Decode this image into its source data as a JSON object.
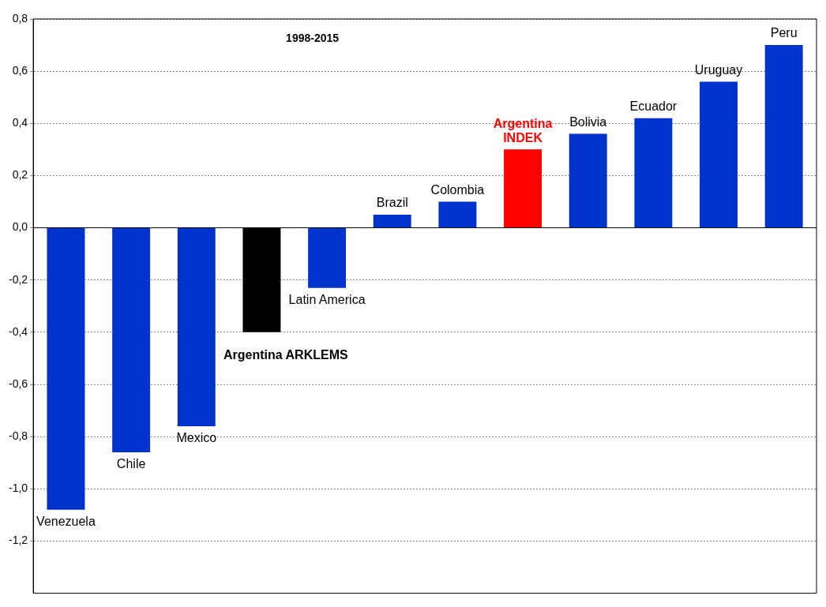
{
  "chart_data": {
    "type": "bar",
    "annotations": [
      "1998-2015"
    ],
    "categories": [
      "Venezuela",
      "Chile",
      "Mexico",
      "Argentina ARKLEMS",
      "Latin America",
      "Brazil",
      "Colombia",
      "Argentina INDEK",
      "Bolivia",
      "Ecuador",
      "Uruguay",
      "Peru"
    ],
    "values": [
      -1.08,
      -0.86,
      -0.76,
      -0.4,
      -0.23,
      0.05,
      0.1,
      0.3,
      0.36,
      0.42,
      0.56,
      0.7
    ],
    "colors": [
      "#0033cc",
      "#0033cc",
      "#0033cc",
      "#000000",
      "#0033cc",
      "#0033cc",
      "#0033cc",
      "#ff0000",
      "#0033cc",
      "#0033cc",
      "#0033cc",
      "#0033cc"
    ],
    "ylim": [
      -1.4,
      0.8
    ],
    "yticks": [
      {
        "value": 0.8,
        "label": "0,8"
      },
      {
        "value": 0.6,
        "label": "0,6"
      },
      {
        "value": 0.4,
        "label": "0,4"
      },
      {
        "value": 0.2,
        "label": "0,2"
      },
      {
        "value": 0,
        "label": "0,0"
      },
      {
        "value": -0.2,
        "label": "-0,2"
      },
      {
        "value": -0.4,
        "label": "-0,4"
      },
      {
        "value": -0.6,
        "label": "-0,6"
      },
      {
        "value": -0.8,
        "label": "-0,8"
      },
      {
        "value": -1,
        "label": "-1,0"
      },
      {
        "value": -1.2,
        "label": "-1,2"
      }
    ],
    "grid": "y",
    "legend": false,
    "tick_labels": "y"
  }
}
